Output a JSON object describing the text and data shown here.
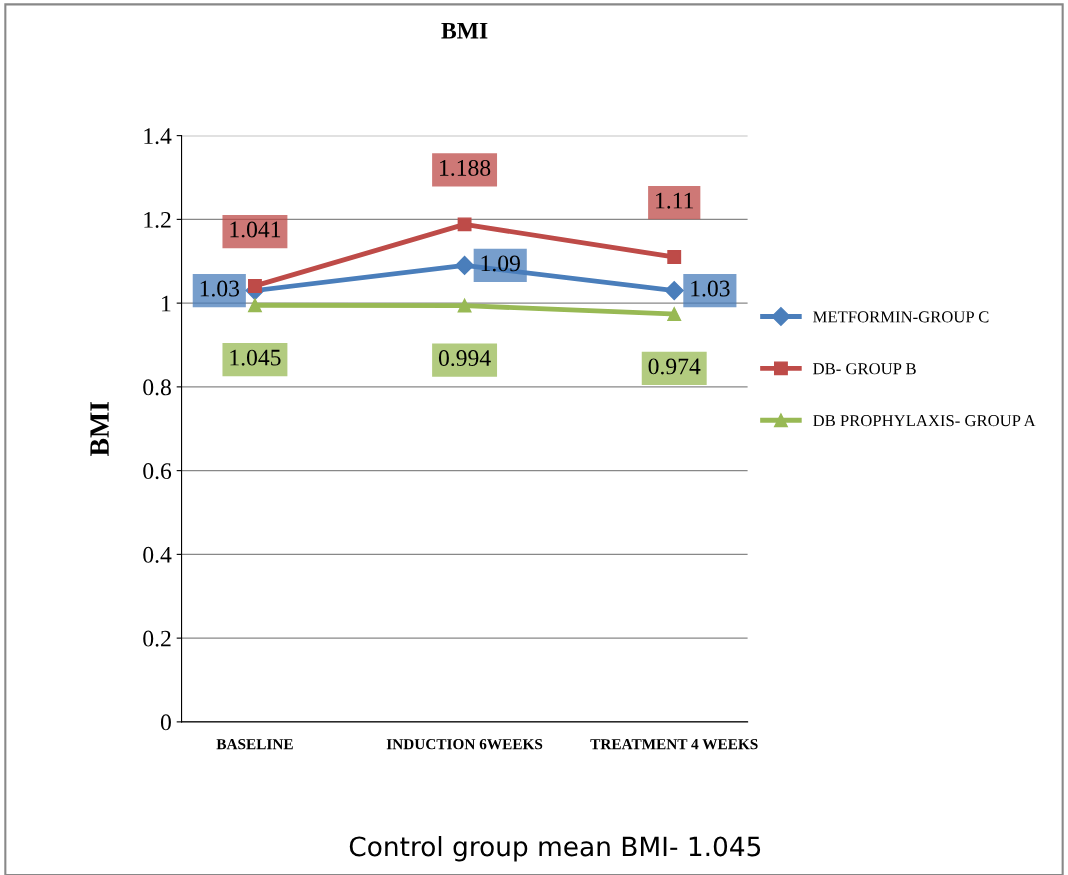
{
  "chart_data": {
    "type": "line",
    "title": "BMI",
    "ylabel": "BMI",
    "categories": [
      "BASELINE",
      "INDUCTION 6WEEKS",
      "TREATMENT 4 WEEKS"
    ],
    "series": [
      {
        "name": "METFORMIN-GROUP C",
        "color": "#4a7ebb",
        "marker": "diamond",
        "values": [
          1.03,
          1.09,
          1.03
        ],
        "value_labels": [
          "1.03",
          "1.09",
          "1.03"
        ]
      },
      {
        "name": "DB- GROUP B",
        "color": "#be4b48",
        "marker": "square",
        "values": [
          1.041,
          1.188,
          1.11
        ],
        "value_labels": [
          "1.041",
          "1.188",
          "1.11"
        ]
      },
      {
        "name": "DB PROPHYLAXIS- GROUP A",
        "color": "#98b954",
        "marker": "triangle",
        "values": [
          0.995,
          0.994,
          0.974
        ],
        "value_labels": [
          null,
          "0.994",
          "0.974"
        ]
      }
    ],
    "ylim": [
      0,
      1.4
    ],
    "yticks": [
      0,
      0.2,
      0.4,
      0.6,
      0.8,
      1,
      1.2,
      1.4
    ],
    "grid": "y",
    "legend": "right",
    "line_style": "solid",
    "annotations": [
      {
        "text": "1.045",
        "x": "BASELINE",
        "y": 0.995
      },
      "Control group mean BMI- 1.045"
    ]
  }
}
